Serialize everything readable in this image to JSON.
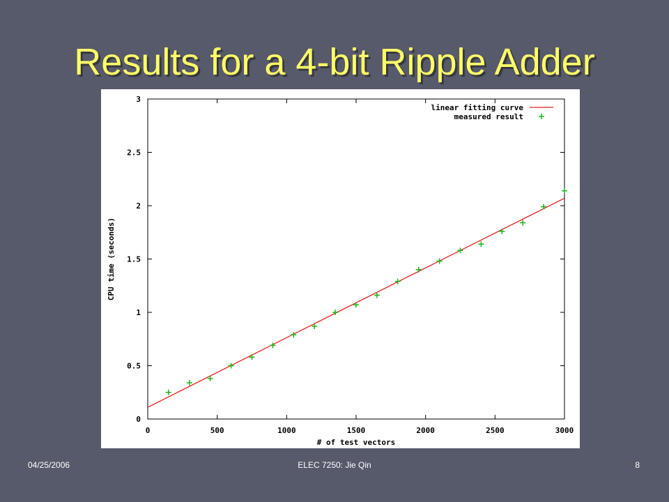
{
  "slide": {
    "title": "Results for a 4-bit Ripple Adder",
    "footer_left": "04/25/2006",
    "footer_center": "ELEC 7250: Jie Qin",
    "page_number": "8"
  },
  "chart_data": {
    "type": "scatter",
    "x_label": "# of test vectors",
    "y_label": "CPU time (seconds)",
    "xlim": [
      0,
      3000
    ],
    "xticks": [
      0,
      500,
      1000,
      1500,
      2000,
      2500,
      3000
    ],
    "ylim": [
      0,
      3
    ],
    "yticks": [
      0,
      0.5,
      1,
      1.5,
      2,
      2.5,
      3
    ],
    "legend": "top-right",
    "series": [
      {
        "name": "linear fitting curve",
        "type": "line",
        "color": "#e8201a",
        "x": [
          0,
          3000
        ],
        "values": [
          0.11,
          2.07
        ]
      },
      {
        "name": "measured result",
        "type": "scatter",
        "color": "#16b816",
        "x": [
          150,
          300,
          450,
          600,
          750,
          900,
          1050,
          1200,
          1350,
          1500,
          1650,
          1800,
          1950,
          2100,
          2250,
          2400,
          2550,
          2700,
          2850,
          3000
        ],
        "values": [
          0.25,
          0.34,
          0.38,
          0.5,
          0.58,
          0.69,
          0.79,
          0.87,
          1.0,
          1.07,
          1.16,
          1.29,
          1.4,
          1.48,
          1.58,
          1.64,
          1.76,
          1.84,
          1.99,
          2.14
        ]
      }
    ]
  }
}
